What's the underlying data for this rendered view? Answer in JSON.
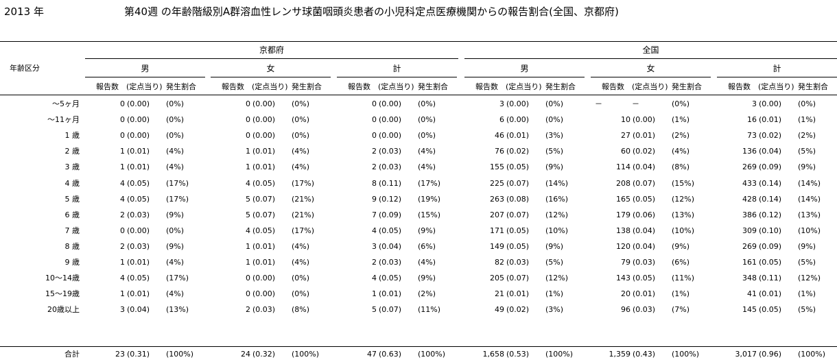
{
  "year_label": "2013 年",
  "title": "第40週 の年齢階級別A群溶血性レンサ球菌咽頭炎患者の小児科定点医療機関からの報告割合(全国、京都府)",
  "header": {
    "age_col": "年齢区分",
    "regions": [
      "京都府",
      "全国"
    ],
    "sexes": [
      "男",
      "女",
      "計"
    ],
    "sub": {
      "count": "報告数",
      "per": "(定点当り)",
      "ratio": "発生割合"
    }
  },
  "rows": [
    {
      "age": "～5ヶ月",
      "v": [
        [
          "0",
          "(0.00)",
          "(0%)"
        ],
        [
          "0",
          "(0.00)",
          "(0%)"
        ],
        [
          "0",
          "(0.00)",
          "(0%)"
        ],
        [
          "3",
          "(0.00)",
          "(0%)"
        ],
        [
          "－",
          "－",
          "(0%)"
        ],
        [
          "3",
          "(0.00)",
          "(0%)"
        ]
      ]
    },
    {
      "age": "～11ヶ月",
      "v": [
        [
          "0",
          "(0.00)",
          "(0%)"
        ],
        [
          "0",
          "(0.00)",
          "(0%)"
        ],
        [
          "0",
          "(0.00)",
          "(0%)"
        ],
        [
          "6",
          "(0.00)",
          "(0%)"
        ],
        [
          "10",
          "(0.00)",
          "(1%)"
        ],
        [
          "16",
          "(0.01)",
          "(1%)"
        ]
      ]
    },
    {
      "age": "1 歳",
      "v": [
        [
          "0",
          "(0.00)",
          "(0%)"
        ],
        [
          "0",
          "(0.00)",
          "(0%)"
        ],
        [
          "0",
          "(0.00)",
          "(0%)"
        ],
        [
          "46",
          "(0.01)",
          "(3%)"
        ],
        [
          "27",
          "(0.01)",
          "(2%)"
        ],
        [
          "73",
          "(0.02)",
          "(2%)"
        ]
      ]
    },
    {
      "age": "2 歳",
      "v": [
        [
          "1",
          "(0.01)",
          "(4%)"
        ],
        [
          "1",
          "(0.01)",
          "(4%)"
        ],
        [
          "2",
          "(0.03)",
          "(4%)"
        ],
        [
          "76",
          "(0.02)",
          "(5%)"
        ],
        [
          "60",
          "(0.02)",
          "(4%)"
        ],
        [
          "136",
          "(0.04)",
          "(5%)"
        ]
      ]
    },
    {
      "age": "3 歳",
      "v": [
        [
          "1",
          "(0.01)",
          "(4%)"
        ],
        [
          "1",
          "(0.01)",
          "(4%)"
        ],
        [
          "2",
          "(0.03)",
          "(4%)"
        ],
        [
          "155",
          "(0.05)",
          "(9%)"
        ],
        [
          "114",
          "(0.04)",
          "(8%)"
        ],
        [
          "269",
          "(0.09)",
          "(9%)"
        ]
      ]
    },
    {
      "age": "4 歳",
      "v": [
        [
          "4",
          "(0.05)",
          "(17%)"
        ],
        [
          "4",
          "(0.05)",
          "(17%)"
        ],
        [
          "8",
          "(0.11)",
          "(17%)"
        ],
        [
          "225",
          "(0.07)",
          "(14%)"
        ],
        [
          "208",
          "(0.07)",
          "(15%)"
        ],
        [
          "433",
          "(0.14)",
          "(14%)"
        ]
      ]
    },
    {
      "age": "5 歳",
      "v": [
        [
          "4",
          "(0.05)",
          "(17%)"
        ],
        [
          "5",
          "(0.07)",
          "(21%)"
        ],
        [
          "9",
          "(0.12)",
          "(19%)"
        ],
        [
          "263",
          "(0.08)",
          "(16%)"
        ],
        [
          "165",
          "(0.05)",
          "(12%)"
        ],
        [
          "428",
          "(0.14)",
          "(14%)"
        ]
      ]
    },
    {
      "age": "6 歳",
      "v": [
        [
          "2",
          "(0.03)",
          "(9%)"
        ],
        [
          "5",
          "(0.07)",
          "(21%)"
        ],
        [
          "7",
          "(0.09)",
          "(15%)"
        ],
        [
          "207",
          "(0.07)",
          "(12%)"
        ],
        [
          "179",
          "(0.06)",
          "(13%)"
        ],
        [
          "386",
          "(0.12)",
          "(13%)"
        ]
      ]
    },
    {
      "age": "7 歳",
      "v": [
        [
          "0",
          "(0.00)",
          "(0%)"
        ],
        [
          "4",
          "(0.05)",
          "(17%)"
        ],
        [
          "4",
          "(0.05)",
          "(9%)"
        ],
        [
          "171",
          "(0.05)",
          "(10%)"
        ],
        [
          "138",
          "(0.04)",
          "(10%)"
        ],
        [
          "309",
          "(0.10)",
          "(10%)"
        ]
      ]
    },
    {
      "age": "8 歳",
      "v": [
        [
          "2",
          "(0.03)",
          "(9%)"
        ],
        [
          "1",
          "(0.01)",
          "(4%)"
        ],
        [
          "3",
          "(0.04)",
          "(6%)"
        ],
        [
          "149",
          "(0.05)",
          "(9%)"
        ],
        [
          "120",
          "(0.04)",
          "(9%)"
        ],
        [
          "269",
          "(0.09)",
          "(9%)"
        ]
      ]
    },
    {
      "age": "9 歳",
      "v": [
        [
          "1",
          "(0.01)",
          "(4%)"
        ],
        [
          "1",
          "(0.01)",
          "(4%)"
        ],
        [
          "2",
          "(0.03)",
          "(4%)"
        ],
        [
          "82",
          "(0.03)",
          "(5%)"
        ],
        [
          "79",
          "(0.03)",
          "(6%)"
        ],
        [
          "161",
          "(0.05)",
          "(5%)"
        ]
      ]
    },
    {
      "age": "10～14歳",
      "v": [
        [
          "4",
          "(0.05)",
          "(17%)"
        ],
        [
          "0",
          "(0.00)",
          "(0%)"
        ],
        [
          "4",
          "(0.05)",
          "(9%)"
        ],
        [
          "205",
          "(0.07)",
          "(12%)"
        ],
        [
          "143",
          "(0.05)",
          "(11%)"
        ],
        [
          "348",
          "(0.11)",
          "(12%)"
        ]
      ]
    },
    {
      "age": "15～19歳",
      "v": [
        [
          "1",
          "(0.01)",
          "(4%)"
        ],
        [
          "0",
          "(0.00)",
          "(0%)"
        ],
        [
          "1",
          "(0.01)",
          "(2%)"
        ],
        [
          "21",
          "(0.01)",
          "(1%)"
        ],
        [
          "20",
          "(0.01)",
          "(1%)"
        ],
        [
          "41",
          "(0.01)",
          "(1%)"
        ]
      ]
    },
    {
      "age": "20歳以上",
      "v": [
        [
          "3",
          "(0.04)",
          "(13%)"
        ],
        [
          "2",
          "(0.03)",
          "(8%)"
        ],
        [
          "5",
          "(0.07)",
          "(11%)"
        ],
        [
          "49",
          "(0.02)",
          "(3%)"
        ],
        [
          "96",
          "(0.03)",
          "(7%)"
        ],
        [
          "145",
          "(0.05)",
          "(5%)"
        ]
      ]
    }
  ],
  "total": {
    "age": "合計",
    "v": [
      [
        "23",
        "(0.31)",
        "(100%)"
      ],
      [
        "24",
        "(0.32)",
        "(100%)"
      ],
      [
        "47",
        "(0.63)",
        "(100%)"
      ],
      [
        "1,658",
        "(0.53)",
        "(100%)"
      ],
      [
        "1,359",
        "(0.43)",
        "(100%)"
      ],
      [
        "3,017",
        "(0.96)",
        "(100%)"
      ]
    ]
  }
}
